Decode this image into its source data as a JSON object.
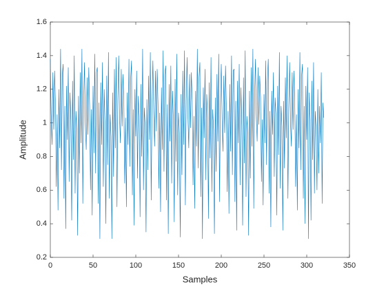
{
  "chart_data": {
    "type": "line",
    "x_label": "Samples",
    "y_label": "Amplitude",
    "xlim": [
      0,
      350
    ],
    "xticks": [
      0,
      50,
      100,
      150,
      200,
      250,
      300,
      350
    ],
    "ylim": [
      0.2,
      1.6
    ],
    "yticks": [
      0.2,
      0.4,
      0.6,
      0.8,
      1,
      1.2,
      1.4,
      1.6
    ],
    "color": "#0072bd",
    "values": [
      1.38,
      1.05,
      0.87,
      1.3,
      0.96,
      1.31,
      1.12,
      0.62,
      1.05,
      0.48,
      1.2,
      0.85,
      1.44,
      0.72,
      1.28,
      1.35,
      0.55,
      1.1,
      0.37,
      1.22,
      0.9,
      1.33,
      0.65,
      1.18,
      1.02,
      0.42,
      1.25,
      0.78,
      1.4,
      0.58,
      1.07,
      0.95,
      0.33,
      1.16,
      0.7,
      1.3,
      0.88,
      1.44,
      0.52,
      1.12,
      1.36,
      1.0,
      0.84,
      1.27,
      0.93,
      1.33,
      1.1,
      0.6,
      1.08,
      0.45,
      1.22,
      0.82,
      1.41,
      0.7,
      1.3,
      1.33,
      0.52,
      1.12,
      0.31,
      1.24,
      0.87,
      1.36,
      0.62,
      1.2,
      1.0,
      0.4,
      1.28,
      0.75,
      1.42,
      0.55,
      1.05,
      0.92,
      0.31,
      1.18,
      0.68,
      1.32,
      0.85,
      1.39,
      0.5,
      1.14,
      1.4,
      1.03,
      0.88,
      1.32,
      0.98,
      1.29,
      1.14,
      0.64,
      1.03,
      0.5,
      1.18,
      0.87,
      1.38,
      0.74,
      1.26,
      1.37,
      0.57,
      1.08,
      0.39,
      1.2,
      0.92,
      1.31,
      0.67,
      1.16,
      1.04,
      0.44,
      1.23,
      0.8,
      1.44,
      0.6,
      1.09,
      0.97,
      0.35,
      1.14,
      0.72,
      1.28,
      0.9,
      1.42,
      0.54,
      1.1,
      1.37,
      1.06,
      0.86,
      1.31,
      0.95,
      1.32,
      1.11,
      0.61,
      1.06,
      0.47,
      1.21,
      0.84,
      1.43,
      0.71,
      1.29,
      1.34,
      0.54,
      1.11,
      0.34,
      1.23,
      0.89,
      1.34,
      0.64,
      1.19,
      1.01,
      0.41,
      1.26,
      0.77,
      1.41,
      0.57,
      1.06,
      0.94,
      0.32,
      1.17,
      0.69,
      1.31,
      0.87,
      1.43,
      0.51,
      1.13,
      1.39,
      1.04,
      0.85,
      1.29,
      0.97,
      1.3,
      1.13,
      0.63,
      1.04,
      0.49,
      1.19,
      0.86,
      1.44,
      0.73,
      1.27,
      1.36,
      0.56,
      1.09,
      0.31,
      1.21,
      0.91,
      1.32,
      0.66,
      1.17,
      1.03,
      0.43,
      1.24,
      0.79,
      1.39,
      0.59,
      1.08,
      0.96,
      0.34,
      1.15,
      0.71,
      1.29,
      0.89,
      1.41,
      0.53,
      1.11,
      1.35,
      1.02,
      0.83,
      1.28,
      0.94,
      1.34,
      1.09,
      0.59,
      1.07,
      0.46,
      1.23,
      0.83,
      1.4,
      0.69,
      1.31,
      1.32,
      0.53,
      1.13,
      0.36,
      1.25,
      0.88,
      1.35,
      0.63,
      1.21,
      0.99,
      0.39,
      1.27,
      0.76,
      1.43,
      0.56,
      1.04,
      0.93,
      0.33,
      1.19,
      0.67,
      1.33,
      0.86,
      1.44,
      0.49,
      1.15,
      1.38,
      1.05,
      0.89,
      1.33,
      0.99,
      1.28,
      1.15,
      0.65,
      1.02,
      0.51,
      1.17,
      0.88,
      1.37,
      0.75,
      1.25,
      1.38,
      0.58,
      1.07,
      0.38,
      1.19,
      0.93,
      1.3,
      0.68,
      1.15,
      1.05,
      0.45,
      1.22,
      0.81,
      1.42,
      0.61,
      1.1,
      0.98,
      0.36,
      1.13,
      0.73,
      1.27,
      0.91,
      1.4,
      0.55,
      1.09,
      1.36,
      1.01,
      0.86,
      1.3,
      0.96,
      1.31,
      1.12,
      0.62,
      1.05,
      0.48,
      1.2,
      0.85,
      1.42,
      0.72,
      1.28,
      1.35,
      0.55,
      1.1,
      0.4,
      1.22,
      0.9,
      1.33,
      0.31,
      1.18,
      1.02,
      0.42,
      1.25,
      0.78,
      1.36,
      0.58,
      1.07,
      0.95,
      0.6,
      1.2,
      0.7,
      1.1,
      0.88,
      1.3,
      0.52,
      1.12,
      1.03
    ]
  }
}
